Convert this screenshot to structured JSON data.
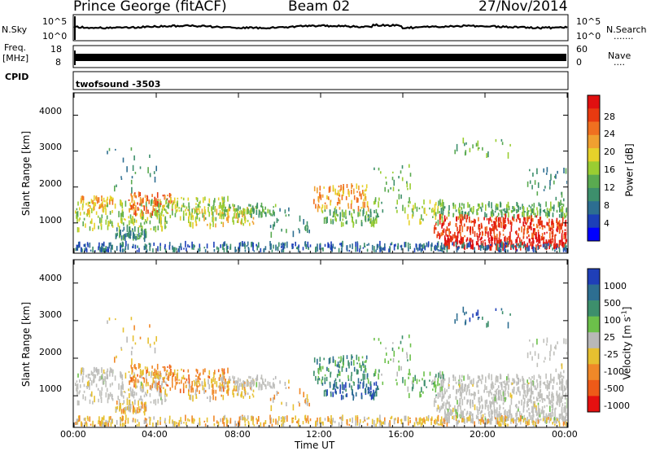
{
  "header": {
    "station": "Prince George (fitACF)",
    "beam": "Beam 02",
    "date": "27/Nov/2014"
  },
  "side_labels": {
    "nsky": "N.Sky",
    "freq_line1": "Freq.",
    "freq_line2": "[MHz]",
    "cpid": "CPID",
    "nsearch": "N.Search",
    "nsearch_dots": ".......",
    "nave": "Nave",
    "nave_dots": "....",
    "program": "twofsound -3503"
  },
  "colors": {
    "power": [
      "#0000ff",
      "#1c3fb8",
      "#2d6e91",
      "#3d8f6c",
      "#5aaa50",
      "#9acd32",
      "#e6d12a",
      "#f0a030",
      "#f07020",
      "#e83a10",
      "#e01010"
    ],
    "velocity": [
      "#1f3fb8",
      "#2d6e91",
      "#3d8f6c",
      "#6cc04a",
      "#b8b8b8",
      "#e6c030",
      "#f08828",
      "#ee5a18",
      "#e51010"
    ],
    "gray_scatter": "#c0c0bc"
  },
  "chart_data": [
    {
      "type": "line",
      "name": "summary",
      "ylabel_left": "N.Sky",
      "ylabel_right": "N.Search",
      "left_ticks": [
        "10^5",
        "10^0"
      ],
      "right_ticks": [
        "10^5",
        "10^0"
      ],
      "x_range": [
        0,
        24
      ]
    },
    {
      "type": "area",
      "name": "frequency",
      "ylabel_left": "Freq. [MHz]",
      "ylabel_right": "Nave",
      "left_ticks": [
        "18",
        "8"
      ],
      "right_ticks": [
        "60",
        "0"
      ],
      "freq_value_approx": 11.5
    },
    {
      "type": "heatmap",
      "name": "power",
      "ylabel": "Slant Range [km]",
      "yticks": [
        1000,
        2000,
        3000,
        4000
      ],
      "ylim": [
        180,
        4600
      ],
      "xlim": [
        0,
        24
      ],
      "colorbar_label": "Power [dB]",
      "colorbar_ticks": [
        "4",
        "8",
        "12",
        "16",
        "20",
        "24",
        "28"
      ]
    },
    {
      "type": "heatmap",
      "name": "velocity",
      "ylabel": "Slant Range [km]",
      "yticks": [
        1000,
        2000,
        3000,
        4000
      ],
      "ylim": [
        180,
        4600
      ],
      "xlim": [
        0,
        24
      ],
      "xlabel": "Time UT",
      "xticks": [
        "00:00",
        "04:00",
        "08:00",
        "12:00",
        "16:00",
        "20:00",
        "00:00"
      ],
      "colorbar_label": "Velocity [m s",
      "colorbar_label_sup": "-1",
      "colorbar_label_end": "]",
      "colorbar_ticks": [
        "1000",
        "500",
        "100",
        "25",
        "-25",
        "-100",
        "-500",
        "-1000"
      ]
    }
  ]
}
